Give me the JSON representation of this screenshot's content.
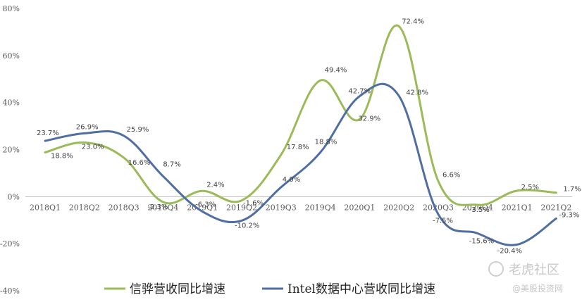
{
  "chart_data": {
    "type": "line",
    "categories": [
      "2018Q1",
      "2018Q2",
      "2018Q3",
      "2018Q4",
      "2019Q1",
      "2019Q2",
      "2019Q3",
      "2019Q4",
      "2020Q1",
      "2020Q2",
      "2020Q3",
      "2020Q4",
      "2021Q1",
      "2021Q2"
    ],
    "ylim": [
      -40,
      80
    ],
    "yticks": [
      -40,
      -20,
      0,
      20,
      40,
      60,
      80
    ],
    "ytick_labels": [
      "-40%",
      "-20%",
      "0%",
      "20%",
      "40%",
      "60%",
      "80%"
    ],
    "grid": false,
    "legend_position": "bottom",
    "series": [
      {
        "name": "信骅营收同比增速",
        "color": "#9bbb59",
        "values": [
          18.8,
          23.0,
          16.6,
          -2.3,
          2.4,
          -1.6,
          17.8,
          49.4,
          32.9,
          72.4,
          6.6,
          -3.5,
          2.5,
          1.7
        ],
        "labels": [
          "18.8%",
          "23.0%",
          "16.6%",
          "-2.3%",
          "2.4%",
          "-1.6%",
          "17.8%",
          "49.4%",
          "32.9%",
          "72.4%",
          "6.6%",
          "-3.5%",
          "2.5%",
          "1.7%"
        ]
      },
      {
        "name": "Intel数据中心营收同比增速",
        "color": "#4f6fa3",
        "values": [
          23.7,
          26.9,
          25.9,
          8.7,
          -6.3,
          -10.2,
          4.0,
          18.8,
          42.7,
          42.8,
          -7.5,
          -15.6,
          -20.4,
          -9.3
        ],
        "labels": [
          "23.7%",
          "26.9%",
          "25.9%",
          "8.7%",
          "-6.3%",
          "-10.2%",
          "4.0%",
          "18.8%",
          "42.7%",
          "42.8%",
          "-7.5%",
          "-15.6%",
          "-20.4%",
          "-9.3%"
        ]
      }
    ]
  },
  "watermark": {
    "main": "老虎社区",
    "sub": "@美股投资网"
  }
}
